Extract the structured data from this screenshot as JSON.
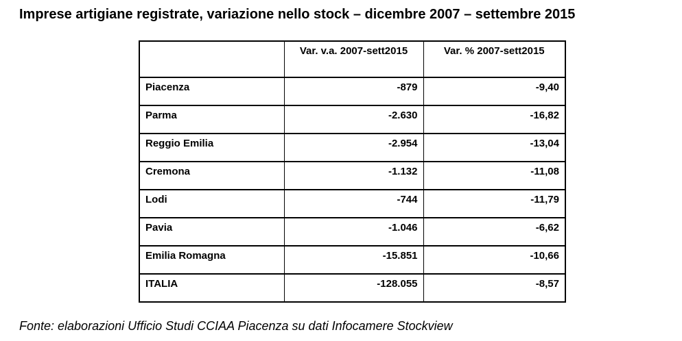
{
  "title": "Imprese artigiane registrate, variazione nello stock – dicembre 2007 – settembre 2015",
  "table": {
    "columns": [
      "",
      "Var. v.a. 2007-sett2015",
      "Var. % 2007-sett2015"
    ],
    "rows": [
      {
        "label": "Piacenza",
        "var_va": "-879",
        "var_pct": "-9,40"
      },
      {
        "label": "Parma",
        "var_va": "-2.630",
        "var_pct": "-16,82"
      },
      {
        "label": "Reggio Emilia",
        "var_va": "-2.954",
        "var_pct": "-13,04"
      },
      {
        "label": "Cremona",
        "var_va": "-1.132",
        "var_pct": "-11,08"
      },
      {
        "label": "Lodi",
        "var_va": "-744",
        "var_pct": "-11,79"
      },
      {
        "label": "Pavia",
        "var_va": "-1.046",
        "var_pct": "-6,62"
      },
      {
        "label": "Emilia Romagna",
        "var_va": "-15.851",
        "var_pct": "-10,66"
      },
      {
        "label": "ITALIA",
        "var_va": "-128.055",
        "var_pct": "-8,57"
      }
    ]
  },
  "source": "Fonte: elaborazioni Ufficio Studi CCIAA Piacenza su dati Infocamere Stockview"
}
